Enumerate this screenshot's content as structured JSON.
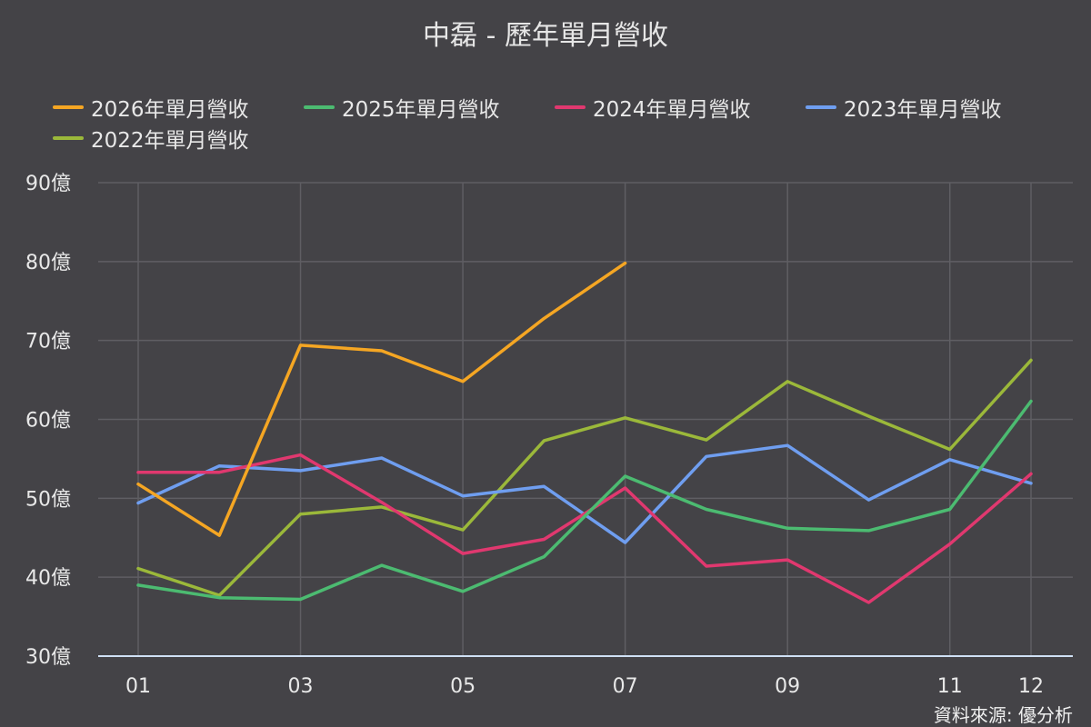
{
  "chart_data": {
    "type": "line",
    "title": "中磊 - 歷年單月營收",
    "source": "資料來源: 優分析",
    "categories": [
      "01",
      "02",
      "03",
      "04",
      "05",
      "06",
      "07",
      "08",
      "09",
      "10",
      "11",
      "12"
    ],
    "x_tick_labels": [
      "01",
      "",
      "03",
      "",
      "05",
      "",
      "07",
      "",
      "09",
      "",
      "11",
      "12"
    ],
    "y_unit": "億",
    "ylim": [
      30,
      90
    ],
    "y_ticks": [
      30,
      40,
      50,
      60,
      70,
      80,
      90
    ],
    "y_tick_labels": [
      "30億",
      "40億",
      "50億",
      "60億",
      "70億",
      "80億",
      "90億"
    ],
    "grid": true,
    "legend_position": "top",
    "series": [
      {
        "name": "2026年單月營收",
        "color": "#f5a623",
        "values": [
          51.8,
          45.3,
          69.4,
          68.7,
          64.8,
          72.8,
          79.8,
          null,
          null,
          null,
          null,
          null
        ]
      },
      {
        "name": "2025年單月營收",
        "color": "#4cbb71",
        "values": [
          39.0,
          37.4,
          37.2,
          41.5,
          38.2,
          42.6,
          52.8,
          48.6,
          46.2,
          45.9,
          48.6,
          62.3
        ]
      },
      {
        "name": "2024年單月營收",
        "color": "#e0386f",
        "values": [
          53.3,
          53.3,
          55.5,
          49.5,
          43.0,
          44.8,
          51.3,
          41.4,
          42.2,
          36.8,
          44.2,
          53.1
        ]
      },
      {
        "name": "2023年單月營收",
        "color": "#6f9ef0",
        "values": [
          49.4,
          54.1,
          53.5,
          55.1,
          50.3,
          51.5,
          44.4,
          55.3,
          56.7,
          49.8,
          54.9,
          51.9
        ]
      },
      {
        "name": "2022年單月營收",
        "color": "#9bb83a",
        "values": [
          41.1,
          37.7,
          48.0,
          48.9,
          46.0,
          57.3,
          60.2,
          57.4,
          64.8,
          60.4,
          56.2,
          67.5
        ]
      }
    ]
  }
}
